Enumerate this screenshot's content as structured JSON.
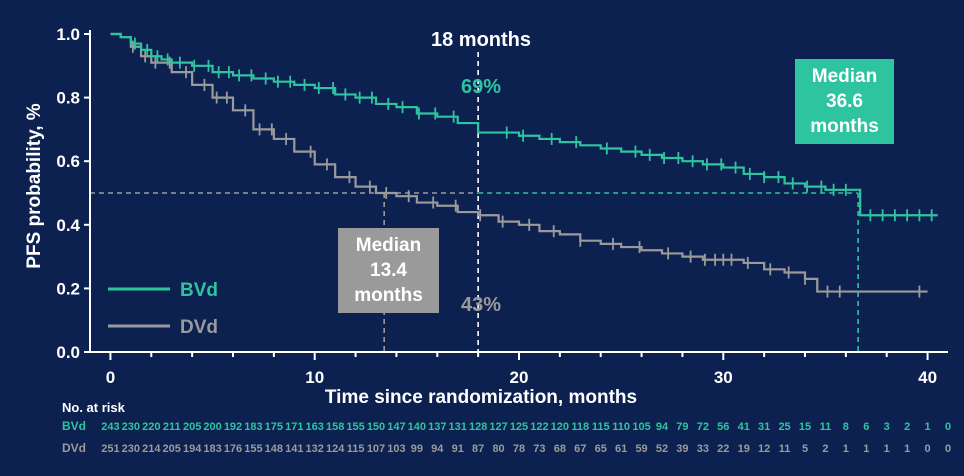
{
  "colors": {
    "background": "#0d2150",
    "bvd": "#2ec4a0",
    "dvd": "#9a9a9a",
    "axis": "#ffffff"
  },
  "chart_data": {
    "type": "line",
    "subtype": "kaplan-meier",
    "ylabel": "PFS probability, %",
    "xlabel": "Time since randomization, months",
    "xlim": [
      -1,
      41
    ],
    "ylim": [
      0,
      1.0
    ],
    "xticks": [
      0,
      10,
      20,
      30,
      40
    ],
    "yticks": [
      "0.0",
      "0.2",
      "0.4",
      "0.6",
      "0.8",
      "1.0"
    ],
    "yticks_values": [
      0,
      0.2,
      0.4,
      0.6,
      0.8,
      1.0
    ],
    "series": [
      {
        "name": "BVd",
        "color": "#2ec4a0",
        "points": [
          [
            0,
            1.0
          ],
          [
            0.5,
            0.99
          ],
          [
            1,
            0.97
          ],
          [
            1.5,
            0.95
          ],
          [
            2,
            0.93
          ],
          [
            2.5,
            0.92
          ],
          [
            3,
            0.91
          ],
          [
            4,
            0.9
          ],
          [
            5,
            0.88
          ],
          [
            6,
            0.87
          ],
          [
            7,
            0.86
          ],
          [
            8,
            0.85
          ],
          [
            9,
            0.84
          ],
          [
            10,
            0.83
          ],
          [
            11,
            0.81
          ],
          [
            12,
            0.8
          ],
          [
            13,
            0.78
          ],
          [
            14,
            0.77
          ],
          [
            15,
            0.75
          ],
          [
            16,
            0.74
          ],
          [
            17,
            0.72
          ],
          [
            18,
            0.69
          ],
          [
            19,
            0.69
          ],
          [
            20,
            0.68
          ],
          [
            21,
            0.67
          ],
          [
            22,
            0.66
          ],
          [
            23,
            0.65
          ],
          [
            24,
            0.64
          ],
          [
            25,
            0.63
          ],
          [
            26,
            0.62
          ],
          [
            27,
            0.61
          ],
          [
            28,
            0.6
          ],
          [
            29,
            0.59
          ],
          [
            30,
            0.58
          ],
          [
            31,
            0.56
          ],
          [
            32,
            0.55
          ],
          [
            33,
            0.53
          ],
          [
            34,
            0.52
          ],
          [
            35,
            0.51
          ],
          [
            36,
            0.51
          ],
          [
            36.6,
            0.51
          ],
          [
            36.7,
            0.43
          ],
          [
            40.5,
            0.43
          ]
        ],
        "censor_x": [
          1.2,
          1.8,
          2.3,
          2.8,
          3.4,
          4.1,
          4.8,
          5.3,
          5.8,
          6.3,
          6.9,
          7.6,
          8.2,
          8.8,
          9.5,
          10.2,
          10.9,
          11.5,
          12.2,
          12.8,
          13.6,
          14.3,
          15.1,
          15.9,
          16.8,
          19.4,
          20.2,
          21.6,
          22.8,
          24.3,
          25.7,
          26.4,
          27.1,
          27.8,
          28.5,
          29.2,
          29.9,
          30.6,
          31.3,
          32.0,
          32.7,
          33.4,
          34.1,
          34.8,
          35.4,
          36.0,
          37.2,
          37.8,
          38.4,
          39.0,
          39.6,
          40.2
        ]
      },
      {
        "name": "DVd",
        "color": "#9a9a9a",
        "points": [
          [
            0,
            1.0
          ],
          [
            0.5,
            0.99
          ],
          [
            1,
            0.96
          ],
          [
            1.5,
            0.93
          ],
          [
            2,
            0.91
          ],
          [
            3,
            0.88
          ],
          [
            4,
            0.84
          ],
          [
            5,
            0.8
          ],
          [
            6,
            0.76
          ],
          [
            7,
            0.7
          ],
          [
            8,
            0.67
          ],
          [
            9,
            0.63
          ],
          [
            10,
            0.59
          ],
          [
            11,
            0.55
          ],
          [
            12,
            0.52
          ],
          [
            13,
            0.5
          ],
          [
            13.4,
            0.5
          ],
          [
            14,
            0.49
          ],
          [
            15,
            0.47
          ],
          [
            16,
            0.46
          ],
          [
            17,
            0.44
          ],
          [
            18,
            0.43
          ],
          [
            19,
            0.41
          ],
          [
            20,
            0.4
          ],
          [
            21,
            0.38
          ],
          [
            22,
            0.37
          ],
          [
            23,
            0.35
          ],
          [
            24,
            0.34
          ],
          [
            25,
            0.33
          ],
          [
            26,
            0.32
          ],
          [
            27,
            0.31
          ],
          [
            28,
            0.3
          ],
          [
            29,
            0.29
          ],
          [
            30,
            0.29
          ],
          [
            31,
            0.28
          ],
          [
            32,
            0.26
          ],
          [
            33,
            0.25
          ],
          [
            34,
            0.23
          ],
          [
            34.5,
            0.23
          ],
          [
            34.6,
            0.19
          ],
          [
            40,
            0.19
          ]
        ],
        "censor_x": [
          1.1,
          1.7,
          2.2,
          2.9,
          3.7,
          4.6,
          5.2,
          5.7,
          6.6,
          7.3,
          7.9,
          8.6,
          9.8,
          10.6,
          11.7,
          12.7,
          13.5,
          14.6,
          15.8,
          16.9,
          18.1,
          19.2,
          20.5,
          21.7,
          23.0,
          24.6,
          25.9,
          27.3,
          28.4,
          29.1,
          29.6,
          30.0,
          30.4,
          31.2,
          32.3,
          33.2,
          34.0,
          35.1,
          35.7,
          39.6
        ]
      }
    ],
    "reference": {
      "x18": 18,
      "median_y": 0.5,
      "median_dvd_x": 13.4,
      "median_bvd_x": 36.6
    },
    "annotations": {
      "month18": "18 months",
      "bvd_pct": "69%",
      "dvd_pct": "43%",
      "bvd_median": [
        "Median",
        "36.6",
        "months"
      ],
      "dvd_median": [
        "Median",
        "13.4",
        "months"
      ]
    },
    "legend": {
      "placement": "bottom-left",
      "entries": [
        "BVd",
        "DVd"
      ]
    },
    "risk_table": {
      "title": "No. at risk",
      "times": [
        0,
        1,
        2,
        3,
        4,
        5,
        6,
        7,
        8,
        9,
        10,
        11,
        12,
        13,
        14,
        15,
        16,
        17,
        18,
        19,
        20,
        21,
        22,
        23,
        24,
        25,
        26,
        27,
        28,
        29,
        30,
        31,
        32,
        33,
        34,
        35,
        36,
        37,
        38,
        39,
        40,
        41
      ],
      "rows": [
        {
          "label": "BVd",
          "values": [
            243,
            230,
            220,
            211,
            205,
            200,
            192,
            183,
            175,
            171,
            163,
            158,
            155,
            150,
            147,
            140,
            137,
            131,
            128,
            127,
            125,
            122,
            120,
            118,
            115,
            110,
            105,
            94,
            79,
            72,
            56,
            41,
            31,
            25,
            15,
            11,
            8,
            6,
            3,
            2,
            1,
            0
          ]
        },
        {
          "label": "DVd",
          "values": [
            251,
            230,
            214,
            205,
            194,
            183,
            176,
            155,
            148,
            141,
            132,
            124,
            115,
            107,
            103,
            99,
            94,
            91,
            87,
            80,
            78,
            73,
            68,
            67,
            65,
            61,
            59,
            52,
            39,
            33,
            22,
            19,
            12,
            11,
            5,
            2,
            1,
            1,
            1,
            1,
            0,
            0
          ]
        }
      ]
    }
  }
}
